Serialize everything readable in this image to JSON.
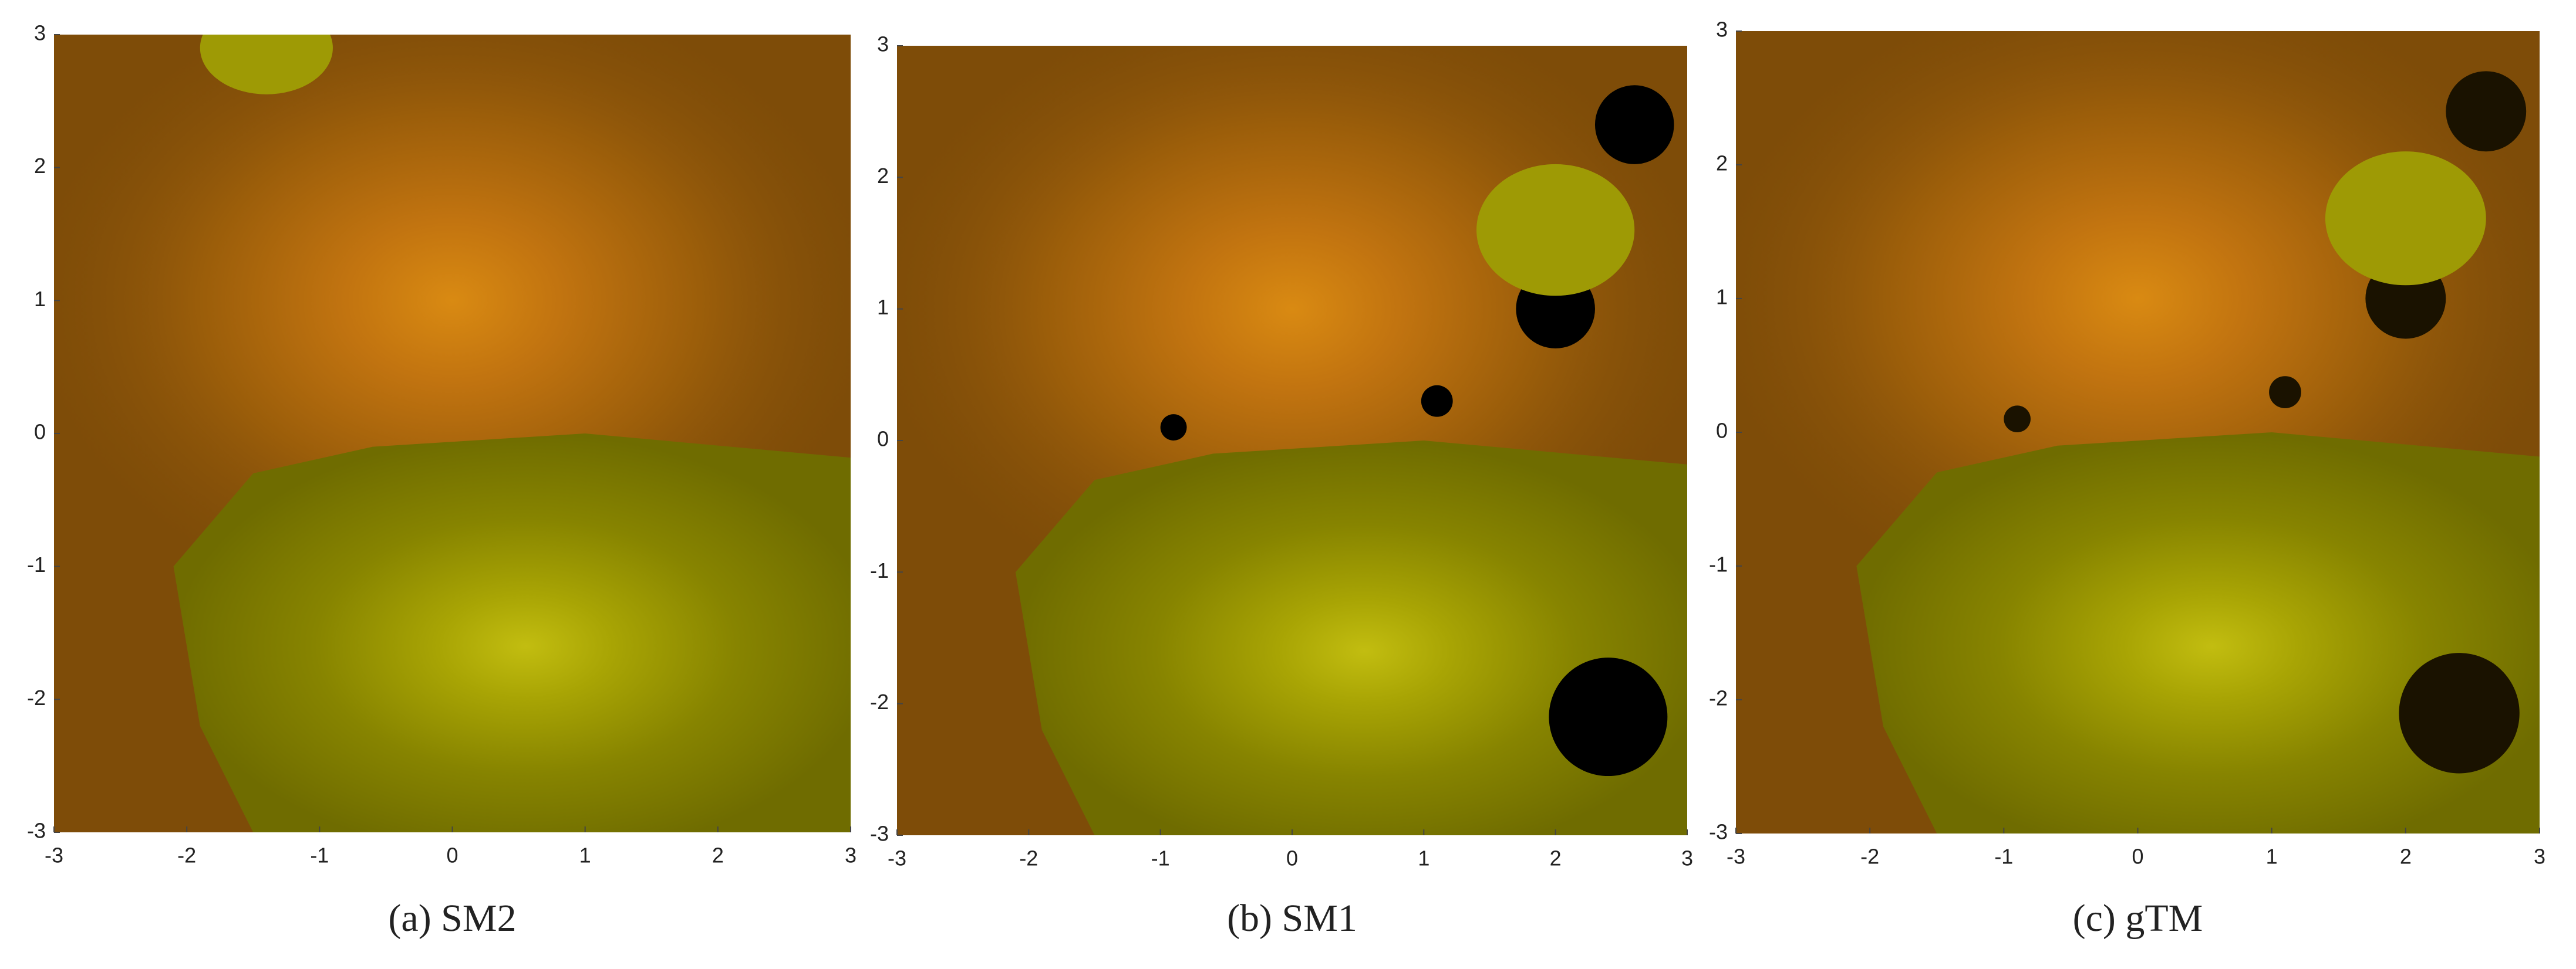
{
  "chart_data": [
    {
      "type": "image",
      "title": "(a) SM2",
      "xlim": [
        -3,
        3
      ],
      "ylim": [
        -3,
        3
      ],
      "xticks": [
        -3,
        -2,
        -1,
        0,
        1,
        2,
        3
      ],
      "yticks": [
        -3,
        -2,
        -1,
        0,
        1,
        2,
        3
      ]
    },
    {
      "type": "image",
      "title": "(b) SM1",
      "xlim": [
        -3,
        3
      ],
      "ylim": [
        -3,
        3
      ],
      "xticks": [
        -3,
        -2,
        -1,
        0,
        1,
        2,
        3
      ],
      "yticks": [
        -3,
        -2,
        -1,
        0,
        1,
        2,
        3
      ]
    },
    {
      "type": "image",
      "title": "(c) gTM",
      "xlim": [
        -3,
        3
      ],
      "ylim": [
        -3,
        3
      ],
      "xticks": [
        -3,
        -2,
        -1,
        0,
        1,
        2,
        3
      ],
      "yticks": [
        -3,
        -2,
        -1,
        0,
        1,
        2,
        3
      ]
    }
  ]
}
